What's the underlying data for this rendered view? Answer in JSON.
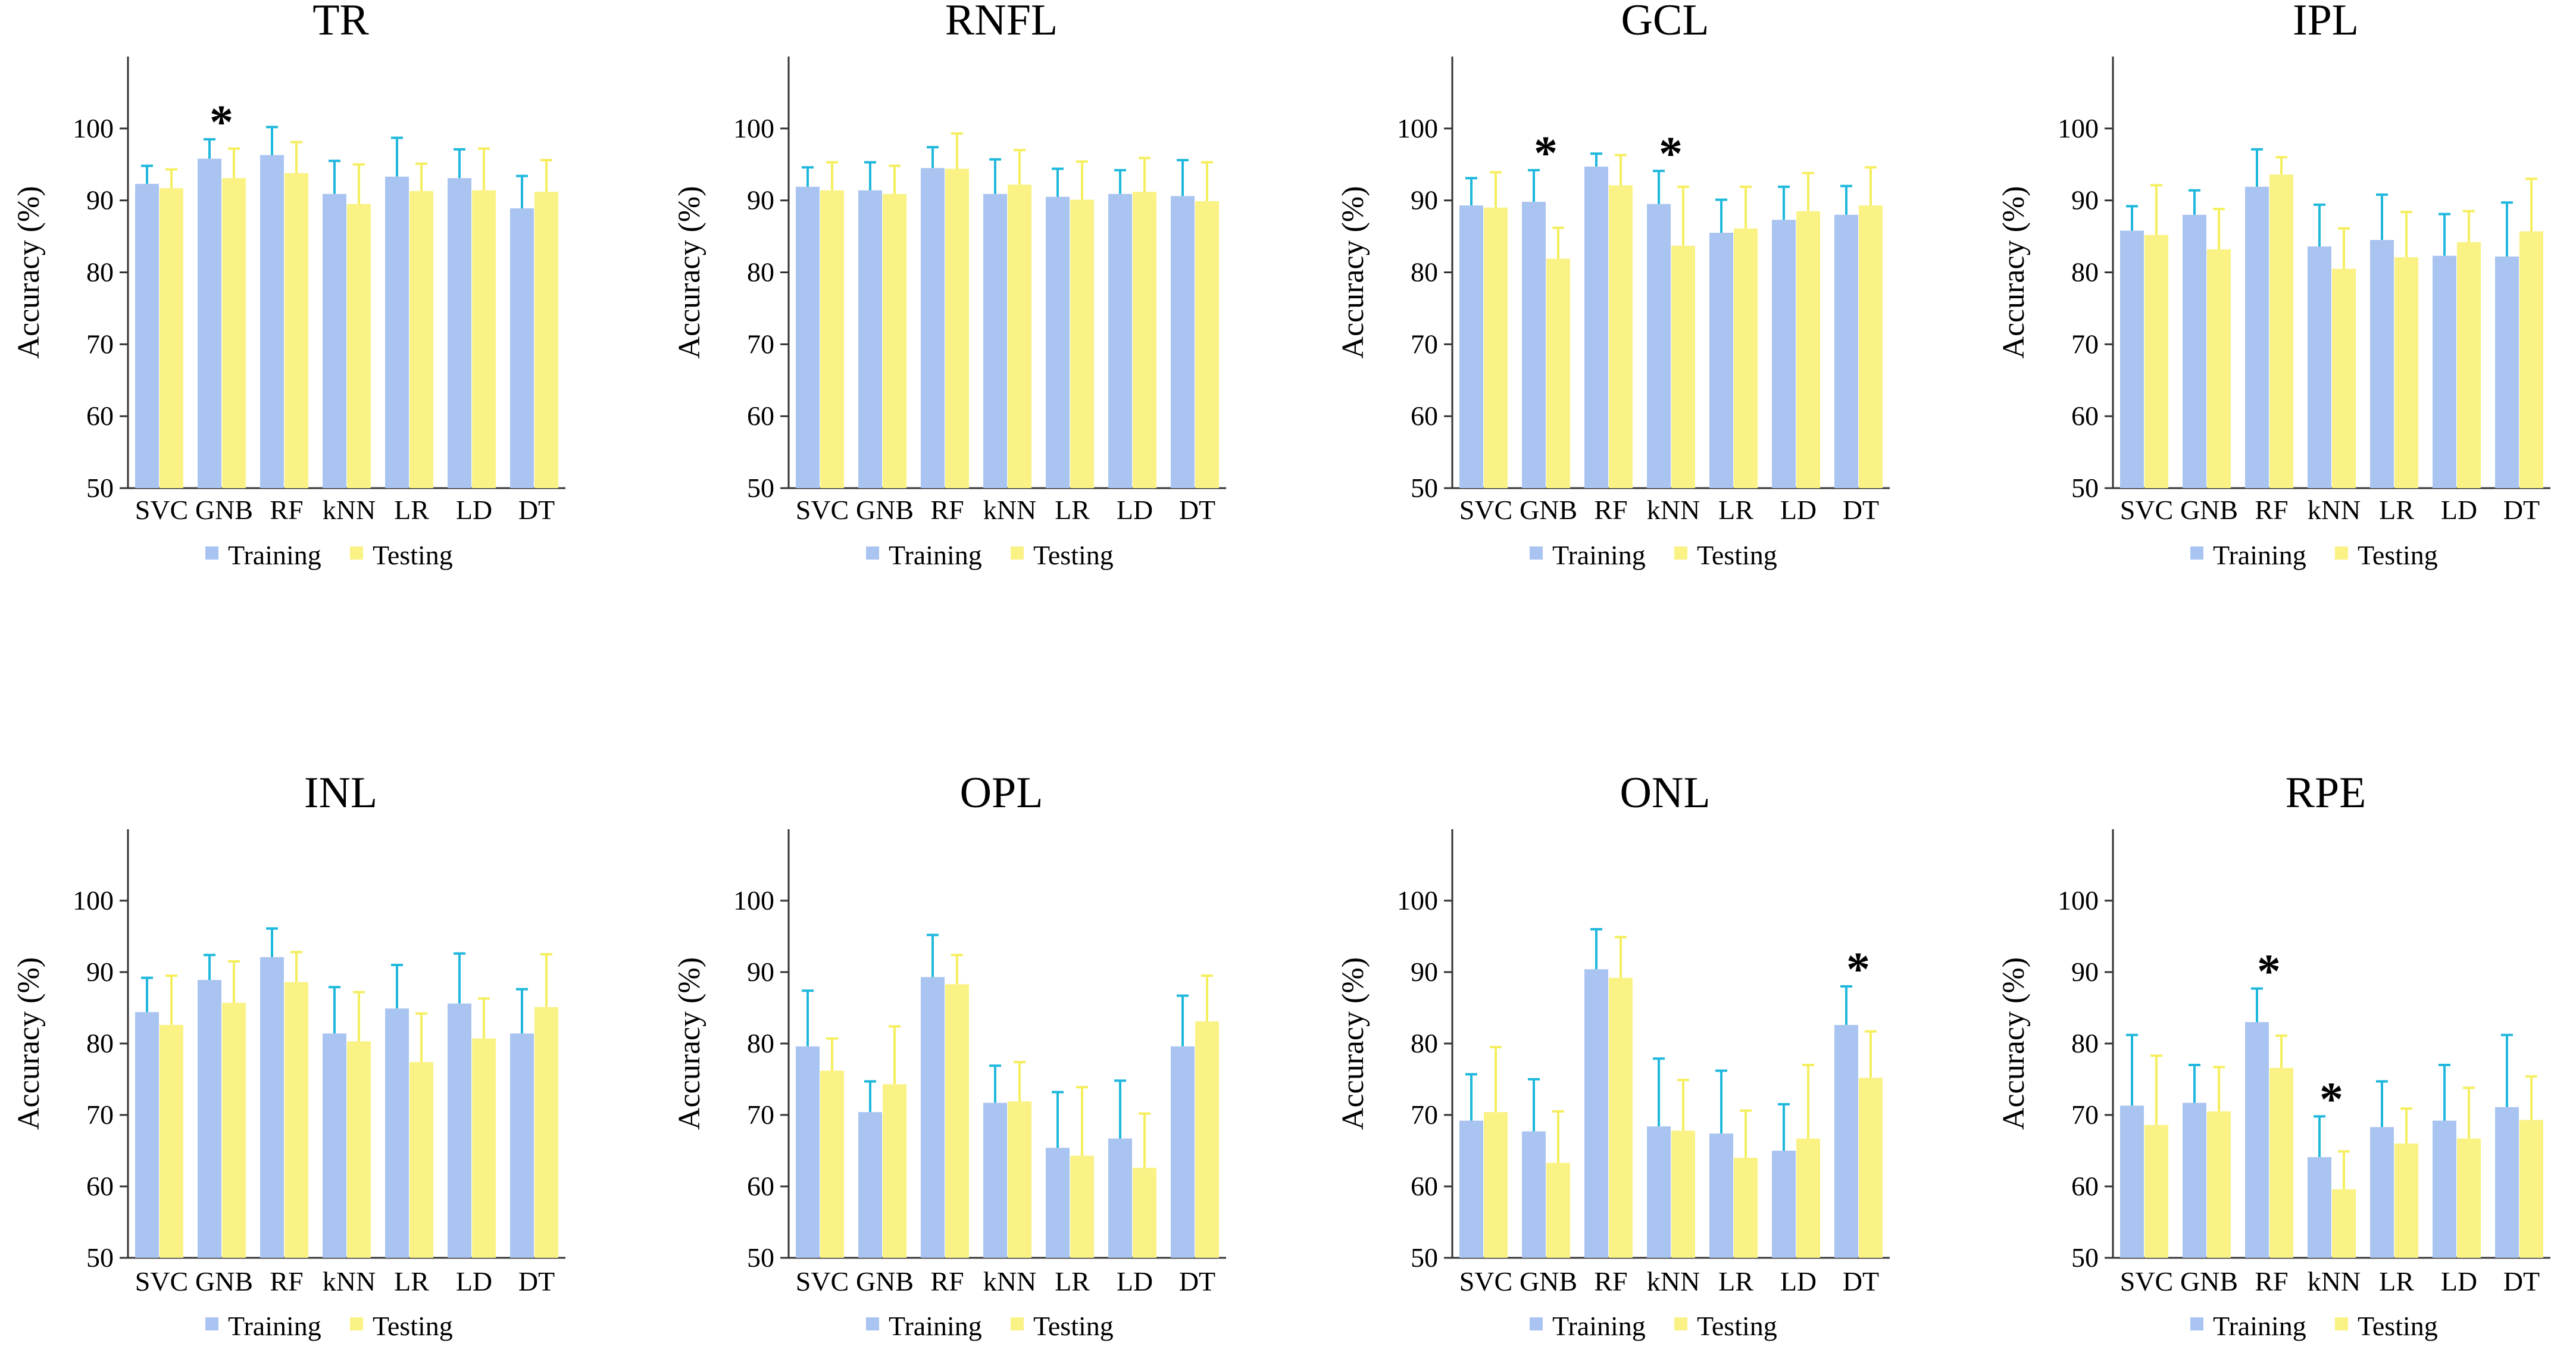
{
  "colors": {
    "training": "#a9c4f0",
    "testing": "#faf285",
    "training_error": "#1fb8dc",
    "testing_error": "#f5ee5f",
    "axis": "#333333"
  },
  "chart_data": [
    {
      "type": "bar",
      "title": "TR",
      "ylabel": "Accuracy  (%)",
      "ylim": [
        50,
        110
      ],
      "yticks": [
        50,
        60,
        70,
        80,
        90,
        100
      ],
      "categories": [
        "SVC",
        "GNB",
        "RF",
        "kNN",
        "LR",
        "LD",
        "DT"
      ],
      "series": [
        {
          "name": "Training",
          "values": [
            92.3,
            95.8,
            96.3,
            90.9,
            93.3,
            93.1,
            88.9
          ],
          "errors": [
            2.5,
            2.7,
            3.9,
            4.6,
            5.4,
            4.0,
            4.5
          ]
        },
        {
          "name": "Testing",
          "values": [
            91.7,
            93.1,
            93.8,
            89.5,
            91.3,
            91.4,
            91.2
          ],
          "errors": [
            2.6,
            4.1,
            4.3,
            5.5,
            3.8,
            5.8,
            4.4
          ]
        }
      ],
      "annotations": [
        {
          "text": "*",
          "category": "GNB"
        }
      ]
    },
    {
      "type": "bar",
      "title": "RNFL",
      "ylabel": "Accuracy  (%)",
      "ylim": [
        50,
        110
      ],
      "yticks": [
        50,
        60,
        70,
        80,
        90,
        100
      ],
      "categories": [
        "SVC",
        "GNB",
        "RF",
        "kNN",
        "LR",
        "LD",
        "DT"
      ],
      "series": [
        {
          "name": "Training",
          "values": [
            91.9,
            91.4,
            94.5,
            90.9,
            90.5,
            90.9,
            90.6
          ],
          "errors": [
            2.7,
            3.9,
            2.9,
            4.8,
            3.9,
            3.3,
            5.0
          ]
        },
        {
          "name": "Testing",
          "values": [
            91.4,
            90.9,
            94.4,
            92.2,
            90.1,
            91.2,
            89.9
          ],
          "errors": [
            3.9,
            3.9,
            4.9,
            4.8,
            5.3,
            4.7,
            5.4
          ]
        }
      ],
      "annotations": []
    },
    {
      "type": "bar",
      "title": "GCL",
      "ylabel": "Accuracy  (%)",
      "ylim": [
        50,
        110
      ],
      "yticks": [
        50,
        60,
        70,
        80,
        90,
        100
      ],
      "categories": [
        "SVC",
        "GNB",
        "RF",
        "kNN",
        "LR",
        "LD",
        "DT"
      ],
      "series": [
        {
          "name": "Training",
          "values": [
            89.3,
            89.8,
            94.7,
            89.5,
            85.5,
            87.3,
            88.0
          ],
          "errors": [
            3.8,
            4.4,
            1.8,
            4.6,
            4.6,
            4.6,
            4.0
          ]
        },
        {
          "name": "Testing",
          "values": [
            89.0,
            81.9,
            92.1,
            83.7,
            86.1,
            88.5,
            89.3
          ],
          "errors": [
            4.9,
            4.3,
            4.2,
            8.2,
            5.8,
            5.3,
            5.3
          ]
        }
      ],
      "annotations": [
        {
          "text": "*",
          "category": "GNB"
        },
        {
          "text": "*",
          "category": "kNN"
        }
      ]
    },
    {
      "type": "bar",
      "title": "IPL",
      "ylabel": "Accuracy  (%)",
      "ylim": [
        50,
        110
      ],
      "yticks": [
        50,
        60,
        70,
        80,
        90,
        100
      ],
      "categories": [
        "SVC",
        "GNB",
        "RF",
        "kNN",
        "LR",
        "LD",
        "DT"
      ],
      "series": [
        {
          "name": "Training",
          "values": [
            85.8,
            88.0,
            91.9,
            83.6,
            84.5,
            82.3,
            82.2
          ],
          "errors": [
            3.4,
            3.4,
            5.2,
            5.8,
            6.3,
            5.8,
            7.5
          ]
        },
        {
          "name": "Testing",
          "values": [
            85.2,
            83.2,
            93.6,
            80.5,
            82.1,
            84.2,
            85.7
          ],
          "errors": [
            6.9,
            5.6,
            2.4,
            5.6,
            6.3,
            4.3,
            7.3
          ]
        }
      ],
      "annotations": []
    },
    {
      "type": "bar",
      "title": "INL",
      "ylabel": "Accuracy  (%)",
      "ylim": [
        50,
        110
      ],
      "yticks": [
        50,
        60,
        70,
        80,
        90,
        100
      ],
      "categories": [
        "SVC",
        "GNB",
        "RF",
        "kNN",
        "LR",
        "LD",
        "DT"
      ],
      "series": [
        {
          "name": "Training",
          "values": [
            84.4,
            88.9,
            92.1,
            81.4,
            84.9,
            85.6,
            81.4
          ],
          "errors": [
            4.8,
            3.5,
            4.0,
            6.5,
            6.1,
            7.0,
            6.2
          ]
        },
        {
          "name": "Testing",
          "values": [
            82.6,
            85.7,
            88.6,
            80.3,
            77.4,
            80.7,
            85.1
          ],
          "errors": [
            6.9,
            5.8,
            4.2,
            6.9,
            6.8,
            5.6,
            7.4
          ]
        }
      ],
      "annotations": []
    },
    {
      "type": "bar",
      "title": "OPL",
      "ylabel": "Accuracy  (%)",
      "ylim": [
        50,
        110
      ],
      "yticks": [
        50,
        60,
        70,
        80,
        90,
        100
      ],
      "categories": [
        "SVC",
        "GNB",
        "RF",
        "kNN",
        "LR",
        "LD",
        "DT"
      ],
      "series": [
        {
          "name": "Training",
          "values": [
            79.6,
            70.4,
            89.3,
            71.7,
            65.4,
            66.7,
            79.6
          ],
          "errors": [
            7.8,
            4.3,
            5.9,
            5.2,
            7.8,
            8.1,
            7.1
          ]
        },
        {
          "name": "Testing",
          "values": [
            76.2,
            74.3,
            88.3,
            71.9,
            64.3,
            62.6,
            83.1
          ],
          "errors": [
            4.5,
            8.1,
            4.1,
            5.5,
            9.6,
            7.6,
            6.4
          ]
        }
      ],
      "annotations": []
    },
    {
      "type": "bar",
      "title": "ONL",
      "ylabel": "Accuracy  (%)",
      "ylim": [
        50,
        110
      ],
      "yticks": [
        50,
        60,
        70,
        80,
        90,
        100
      ],
      "categories": [
        "SVC",
        "GNB",
        "RF",
        "kNN",
        "LR",
        "LD",
        "DT"
      ],
      "series": [
        {
          "name": "Training",
          "values": [
            69.2,
            67.7,
            90.4,
            68.4,
            67.4,
            65.0,
            82.6
          ],
          "errors": [
            6.5,
            7.3,
            5.6,
            9.5,
            8.8,
            6.5,
            5.4
          ]
        },
        {
          "name": "Testing",
          "values": [
            70.4,
            63.3,
            89.2,
            67.8,
            64.0,
            66.7,
            75.2
          ],
          "errors": [
            9.1,
            7.2,
            5.7,
            7.1,
            6.6,
            10.3,
            6.5
          ]
        }
      ],
      "annotations": [
        {
          "text": "*",
          "category": "DT"
        }
      ]
    },
    {
      "type": "bar",
      "title": "RPE",
      "ylabel": "Accuracy  (%)",
      "ylim": [
        50,
        110
      ],
      "yticks": [
        50,
        60,
        70,
        80,
        90,
        100
      ],
      "categories": [
        "SVC",
        "GNB",
        "RF",
        "kNN",
        "LR",
        "LD",
        "DT"
      ],
      "series": [
        {
          "name": "Training",
          "values": [
            71.3,
            71.7,
            83.0,
            64.1,
            68.3,
            69.2,
            71.1
          ],
          "errors": [
            9.9,
            5.3,
            4.7,
            5.7,
            6.4,
            7.8,
            10.1
          ]
        },
        {
          "name": "Testing",
          "values": [
            68.6,
            70.5,
            76.6,
            59.6,
            66.0,
            66.7,
            69.3
          ],
          "errors": [
            9.7,
            6.2,
            4.5,
            5.3,
            4.9,
            7.1,
            6.1
          ]
        }
      ],
      "annotations": [
        {
          "text": "*",
          "category": "RF"
        },
        {
          "text": "*",
          "category": "kNN"
        }
      ]
    }
  ]
}
